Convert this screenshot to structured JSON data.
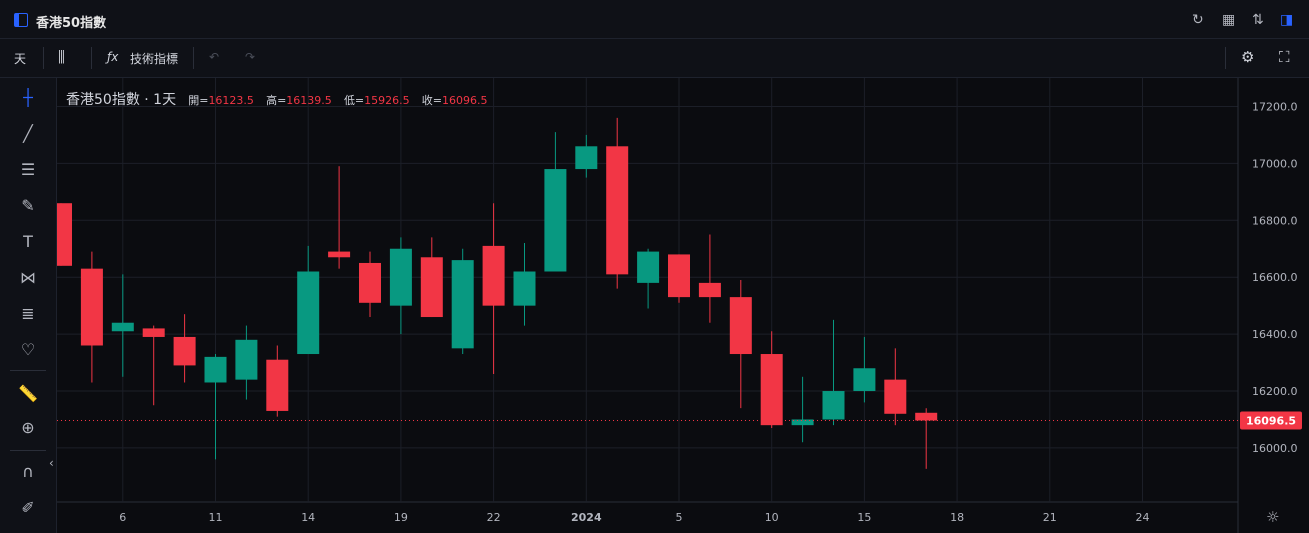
{
  "window": {
    "title": "香港50指數",
    "icons": [
      "refresh-icon",
      "layout-icon",
      "sort-icon",
      "panel-icon"
    ]
  },
  "toolbar": {
    "interval": "天",
    "chart_type_icon": "candles-icon",
    "indicator_icon": "fx-icon",
    "indicators_label": "技術指標",
    "undo_icon": "undo-icon",
    "redo_icon": "redo-icon",
    "settings_icon": "gear-icon",
    "fullscreen_icon": "fullscreen-icon"
  },
  "left_tools": [
    "crosshair-icon",
    "trendline-icon",
    "horizontal-lines-icon",
    "brush-icon",
    "text-icon",
    "pattern-icon",
    "measure-lines-icon",
    "heart-icon",
    "ruler-icon",
    "zoom-icon",
    "magnet-icon",
    "lock-pencil-icon"
  ],
  "legend": {
    "symbol": "香港50指數 · 1天",
    "open_label": "開=",
    "open": "16123.5",
    "high_label": "高=",
    "high": "16139.5",
    "low_label": "低=",
    "low": "15926.5",
    "close_label": "收=",
    "close": "16096.5"
  },
  "chart_data": {
    "type": "candlestick",
    "y_ticks": [
      "17200.0",
      "17000.0",
      "16800.0",
      "16600.0",
      "16400.0",
      "16200.0",
      "16000.0"
    ],
    "x_ticks": [
      "6",
      "11",
      "14",
      "19",
      "22",
      "2024",
      "5",
      "10",
      "15",
      "18",
      "21",
      "24"
    ],
    "ylim": [
      15810,
      17300
    ],
    "last_price": "16096.5",
    "colors": {
      "up": "#089981",
      "down": "#f23645",
      "grid": "#1c1f28",
      "axis_text": "#b2b5be"
    },
    "candles": [
      {
        "o": 16860,
        "h": 16860,
        "l": 16640,
        "c": 16640
      },
      {
        "o": 16630,
        "h": 16690,
        "l": 16230,
        "c": 16360
      },
      {
        "o": 16410,
        "h": 16610,
        "l": 16250,
        "c": 16440
      },
      {
        "o": 16420,
        "h": 16430,
        "l": 16150,
        "c": 16390
      },
      {
        "o": 16390,
        "h": 16470,
        "l": 16230,
        "c": 16290
      },
      {
        "o": 16230,
        "h": 16330,
        "l": 15960,
        "c": 16320
      },
      {
        "o": 16240,
        "h": 16430,
        "l": 16170,
        "c": 16380
      },
      {
        "o": 16310,
        "h": 16360,
        "l": 16110,
        "c": 16130
      },
      {
        "o": 16330,
        "h": 16710,
        "l": 16330,
        "c": 16620
      },
      {
        "o": 16690,
        "h": 16990,
        "l": 16630,
        "c": 16670
      },
      {
        "o": 16650,
        "h": 16690,
        "l": 16460,
        "c": 16510
      },
      {
        "o": 16500,
        "h": 16740,
        "l": 16400,
        "c": 16700
      },
      {
        "o": 16670,
        "h": 16740,
        "l": 16460,
        "c": 16460
      },
      {
        "o": 16350,
        "h": 16700,
        "l": 16330,
        "c": 16660
      },
      {
        "o": 16710,
        "h": 16860,
        "l": 16260,
        "c": 16500
      },
      {
        "o": 16500,
        "h": 16720,
        "l": 16430,
        "c": 16620
      },
      {
        "o": 16620,
        "h": 17110,
        "l": 16620,
        "c": 16980
      },
      {
        "o": 16980,
        "h": 17100,
        "l": 16950,
        "c": 17060
      },
      {
        "o": 17060,
        "h": 17160,
        "l": 16560,
        "c": 16610
      },
      {
        "o": 16580,
        "h": 16700,
        "l": 16490,
        "c": 16690
      },
      {
        "o": 16680,
        "h": 16680,
        "l": 16510,
        "c": 16530
      },
      {
        "o": 16580,
        "h": 16750,
        "l": 16440,
        "c": 16530
      },
      {
        "o": 16530,
        "h": 16590,
        "l": 16140,
        "c": 16330
      },
      {
        "o": 16330,
        "h": 16410,
        "l": 16070,
        "c": 16080
      },
      {
        "o": 16080,
        "h": 16250,
        "l": 16020,
        "c": 16100
      },
      {
        "o": 16100,
        "h": 16450,
        "l": 16080,
        "c": 16200
      },
      {
        "o": 16200,
        "h": 16390,
        "l": 16160,
        "c": 16280
      },
      {
        "o": 16240,
        "h": 16350,
        "l": 16080,
        "c": 16120
      },
      {
        "o": 16123.5,
        "h": 16139.5,
        "l": 15926.5,
        "c": 16096.5
      }
    ]
  }
}
